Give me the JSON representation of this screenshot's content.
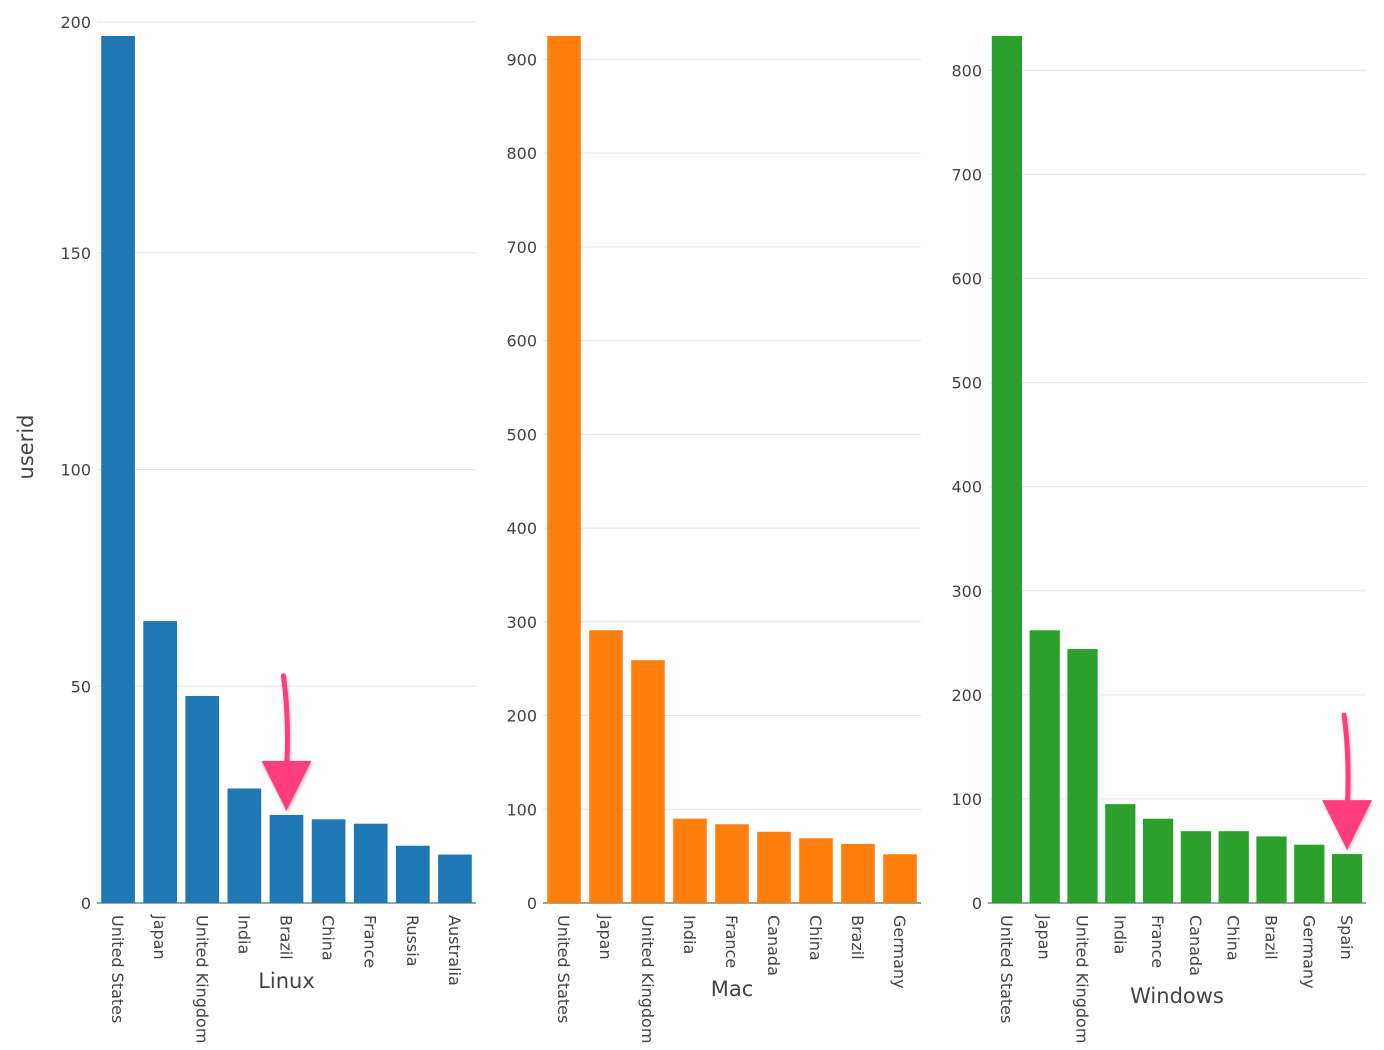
{
  "chart_data": [
    {
      "type": "bar",
      "xlabel": "Linux",
      "ylabel": "userid",
      "color": "#1f77b4",
      "ylim": [
        0,
        200
      ],
      "yticks": [
        0,
        50,
        100,
        150,
        200
      ],
      "categories": [
        "United States",
        "Japan",
        "United Kingdom",
        "India",
        "Brazil",
        "China",
        "France",
        "Russia",
        "Australia"
      ],
      "values": [
        197,
        64,
        47,
        26,
        20,
        19,
        18,
        13,
        11
      ],
      "annotation": {
        "type": "arrow",
        "color": "#ff3d7f",
        "target_category": "Brazil"
      }
    },
    {
      "type": "bar",
      "xlabel": "Mac",
      "ylabel": "",
      "color": "#ff7f0e",
      "ylim": [
        0,
        925
      ],
      "yticks": [
        0,
        100,
        200,
        300,
        400,
        500,
        600,
        700,
        800,
        900
      ],
      "categories": [
        "United States",
        "Japan",
        "United Kingdom",
        "India",
        "France",
        "Canada",
        "China",
        "Brazil",
        "Germany"
      ],
      "values": [
        925,
        291,
        259,
        90,
        84,
        76,
        69,
        63,
        52
      ]
    },
    {
      "type": "bar",
      "xlabel": "Windows",
      "ylabel": "",
      "color": "#2ca02c",
      "ylim": [
        0,
        833
      ],
      "yticks": [
        0,
        100,
        200,
        300,
        400,
        500,
        600,
        700,
        800
      ],
      "categories": [
        "United States",
        "Japan",
        "United Kingdom",
        "India",
        "France",
        "Canada",
        "China",
        "Brazil",
        "Germany",
        "Spain"
      ],
      "values": [
        833,
        262,
        244,
        95,
        81,
        69,
        69,
        64,
        56,
        47
      ],
      "annotation": {
        "type": "arrow",
        "color": "#ff3d7f",
        "target_category": "Spain"
      }
    }
  ]
}
